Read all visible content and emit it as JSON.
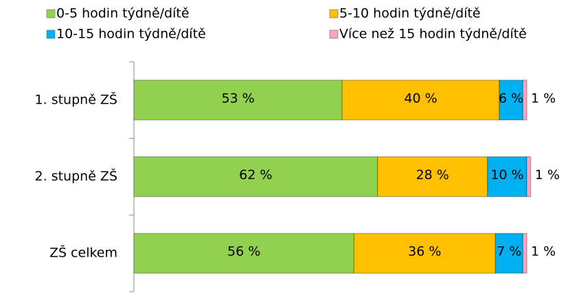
{
  "chart_data": {
    "type": "stacked-bar-horizontal",
    "categories": [
      "1. stupně ZŠ",
      "2. stupně ZŠ",
      "ZŠ celkem"
    ],
    "series": [
      {
        "name": "0-5 hodin týdně/dítě",
        "color": "#92d050",
        "values": [
          53,
          62,
          56
        ],
        "value_labels": [
          "53 %",
          "62 %",
          "56 %"
        ]
      },
      {
        "name": "5-10 hodin týdně/dítě",
        "color": "#ffc000",
        "values": [
          40,
          28,
          36
        ],
        "value_labels": [
          "40 %",
          "28 %",
          "36 %"
        ]
      },
      {
        "name": "10-15 hodin týdně/dítě",
        "color": "#00b0f0",
        "values": [
          6,
          10,
          7
        ],
        "value_labels": [
          "6 %",
          "10 %",
          "7 %"
        ]
      },
      {
        "name": "Více než 15 hodin týdně/dítě",
        "color": "#f4a7c3",
        "values": [
          1,
          1,
          1
        ],
        "value_labels": [
          "1 %",
          "1 %",
          "1 %"
        ]
      }
    ]
  }
}
